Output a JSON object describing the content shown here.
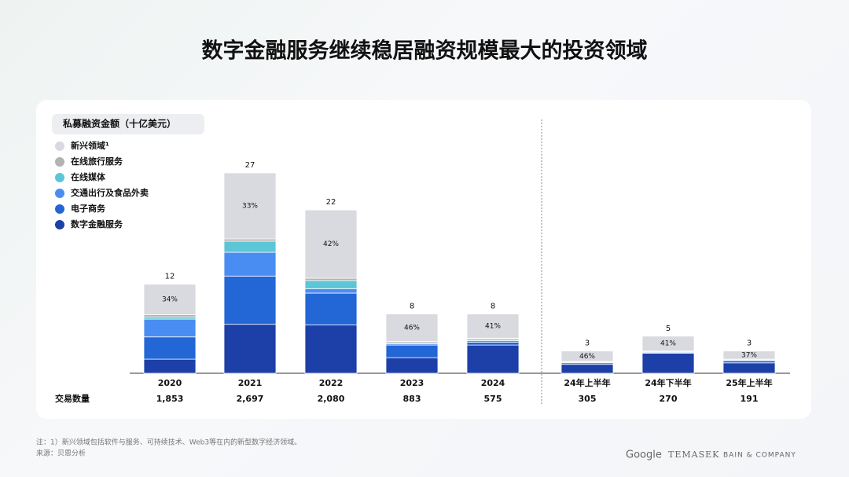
{
  "chart_data": {
    "type": "stacked_bar",
    "title": "数字金融服务继续稳居融资规模最大的投资领域",
    "y_label": "私募融资金额（十亿美元）",
    "categories": [
      "2020",
      "2021",
      "2022",
      "2023",
      "2024",
      "24年上半年",
      "24年下半年",
      "25年上半年"
    ],
    "series": [
      {
        "name": "数字金融服务",
        "color": "#1d3fa8",
        "values": [
          1.9,
          6.6,
          6.5,
          2.1,
          3.8,
          1.2,
          2.7,
          1.4
        ]
      },
      {
        "name": "电子商务",
        "color": "#2366d6",
        "values": [
          3.0,
          6.5,
          4.3,
          1.7,
          0.4,
          0.2,
          0.1,
          0.3
        ]
      },
      {
        "name": "交通出行及食品外卖",
        "color": "#4a8df2",
        "values": [
          2.4,
          3.2,
          0.6,
          0.2,
          0.2,
          0.1,
          0.1,
          0.1
        ]
      },
      {
        "name": "在线媒体",
        "color": "#5cc6d6",
        "values": [
          0.3,
          1.5,
          1.1,
          0.1,
          0.2,
          0.1,
          0,
          0.1
        ]
      },
      {
        "name": "在线旅行服务",
        "color": "#b3b3b3",
        "values": [
          0.3,
          0.3,
          0.3,
          0.2,
          0.1,
          0,
          0.1,
          0
        ]
      },
      {
        "name": "新兴领域¹",
        "color": "#d9dadf",
        "values": [
          4.1,
          8.9,
          9.2,
          3.7,
          3.3,
          1.4,
          2.0,
          1.1
        ]
      }
    ],
    "totals": [
      12,
      27,
      22,
      8,
      8,
      3,
      5,
      3
    ],
    "emerging_share_labels": [
      "34%",
      "33%",
      "42%",
      "46%",
      "41%",
      "46%",
      "41%",
      "37%"
    ],
    "deal_count_label": "交易数量",
    "deal_counts": [
      "1,853",
      "2,697",
      "2,080",
      "883",
      "575",
      "305",
      "270",
      "191"
    ],
    "ylim": [
      0,
      27
    ],
    "footnote": "注：1）新兴领域包括软件与服务、可持续技术、Web3等在内的新型数字经济领域。",
    "source": "来源：贝恩分析",
    "logos": [
      "Google",
      "TEMASEK",
      "BAIN & COMPANY"
    ]
  }
}
